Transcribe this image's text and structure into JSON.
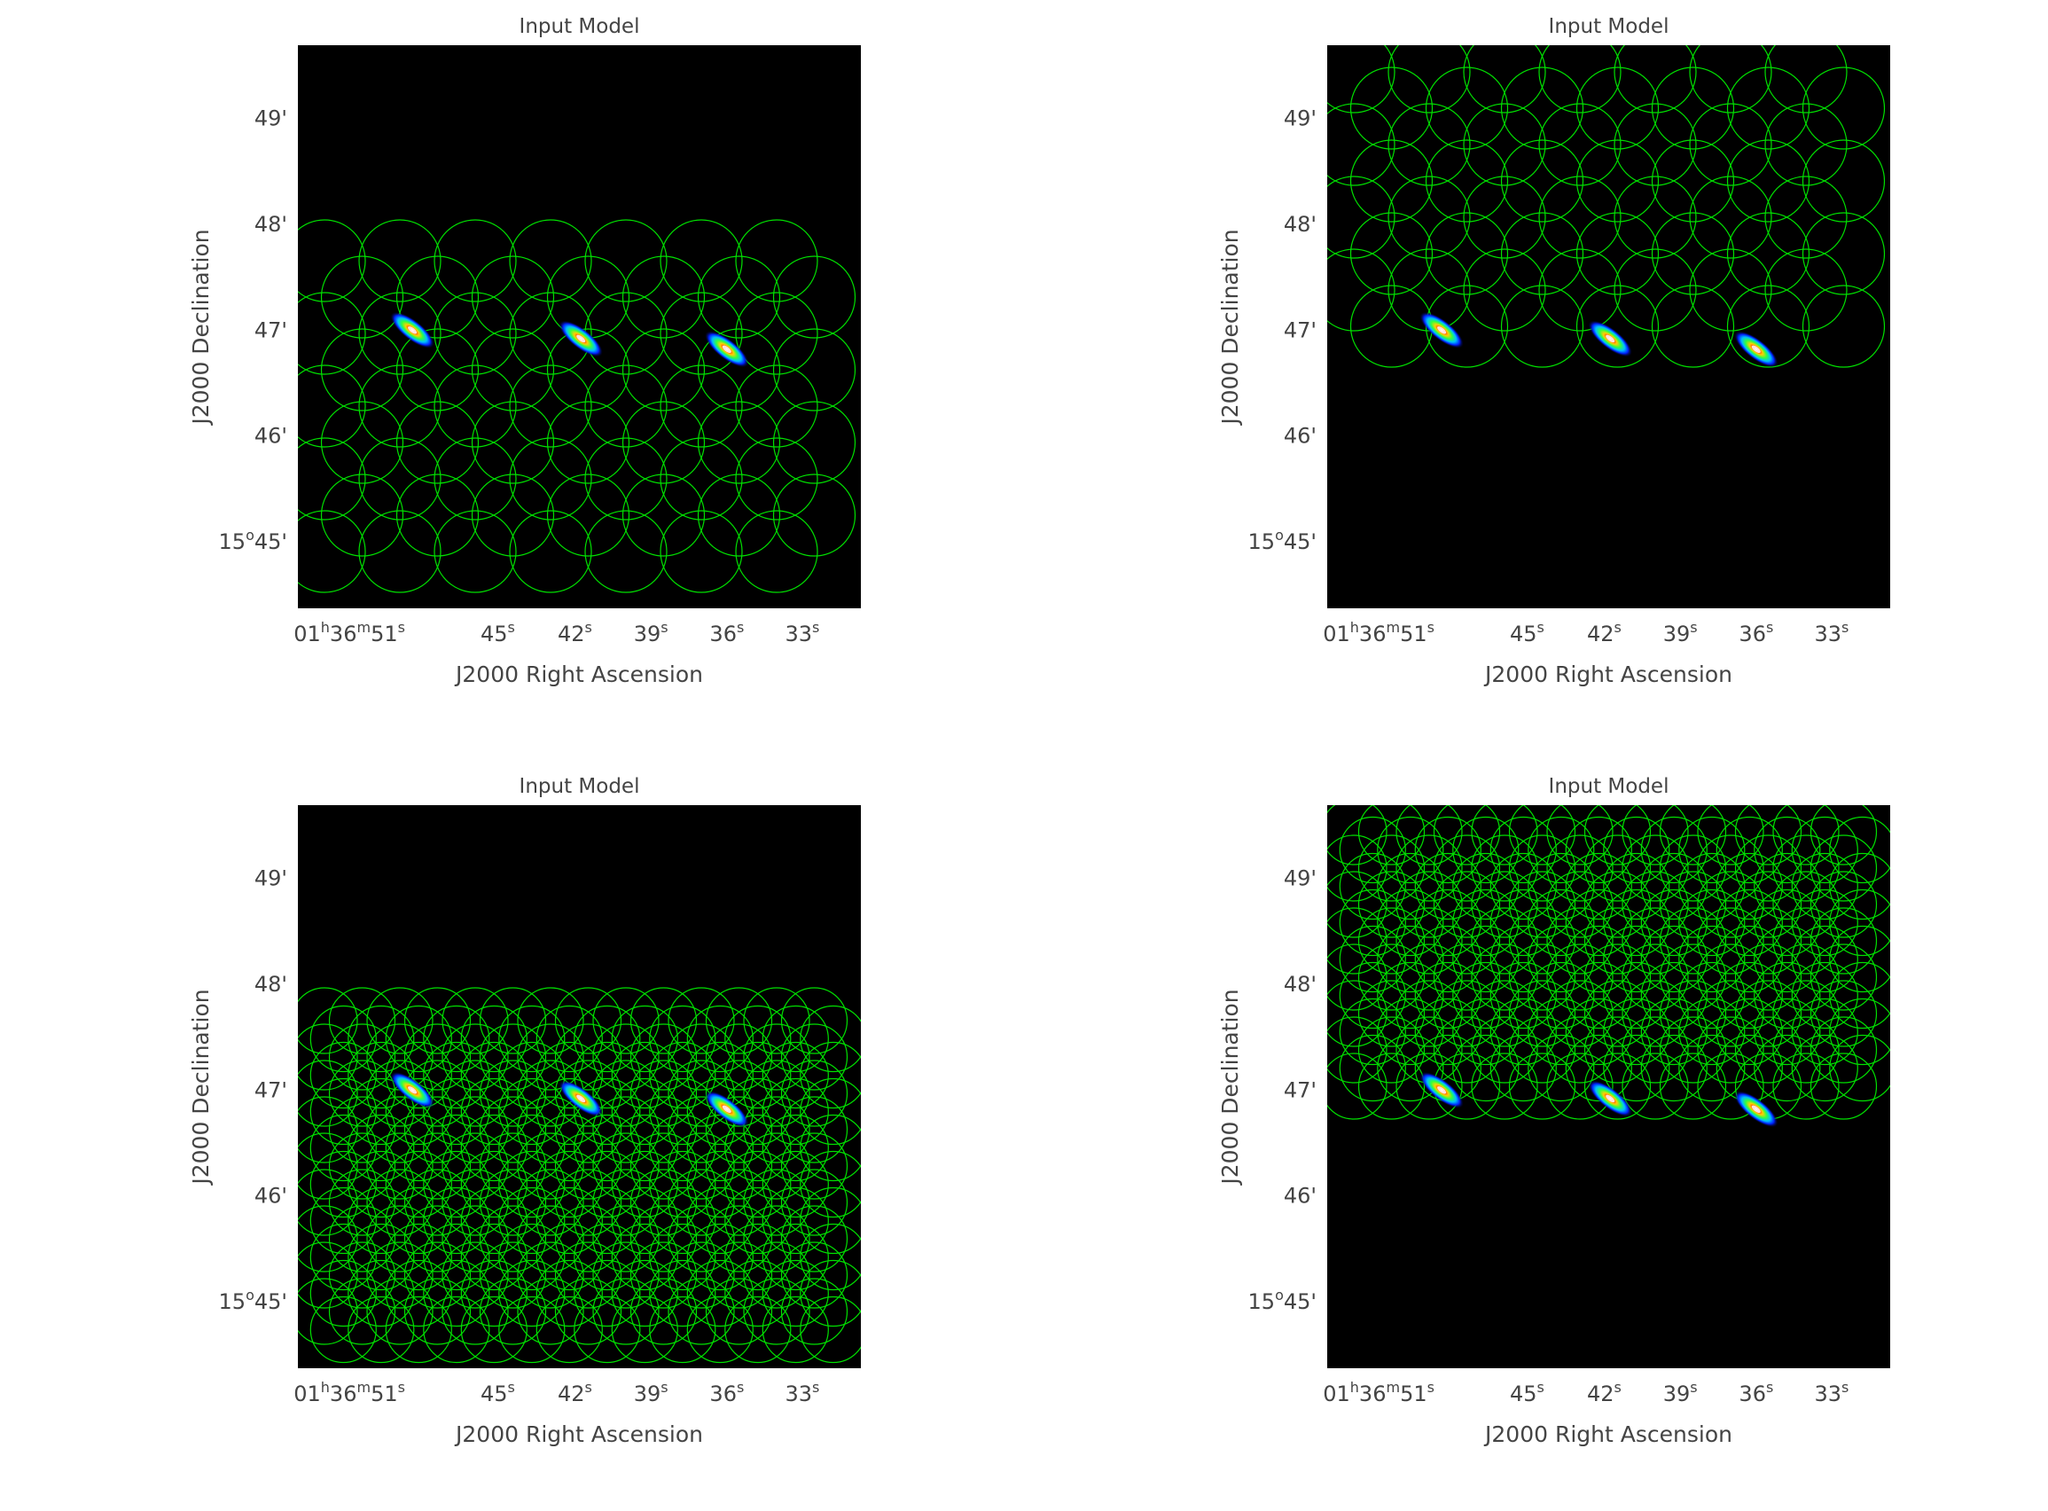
{
  "figure": {
    "background": "#ffffff",
    "image_background": "#000000",
    "text_color": "#444444",
    "circle_color": "#00e000"
  },
  "tick_labels": {
    "y": [
      {
        "text": "49'",
        "sup": ""
      },
      {
        "text": "48'",
        "sup": ""
      },
      {
        "text": "47'",
        "sup": ""
      },
      {
        "text": "46'",
        "sup": ""
      },
      {
        "text": "15",
        "sup": "o",
        "after": "45'"
      }
    ],
    "x": [
      {
        "parts": [
          [
            "01",
            ""
          ],
          [
            "h",
            "sup"
          ],
          [
            "36",
            ""
          ],
          [
            "m",
            "sup"
          ],
          [
            "51",
            ""
          ],
          [
            "s",
            "sup"
          ]
        ]
      },
      {
        "parts": [
          [
            "45",
            ""
          ],
          [
            "s",
            "sup"
          ]
        ]
      },
      {
        "parts": [
          [
            "42",
            ""
          ],
          [
            "s",
            "sup"
          ]
        ]
      },
      {
        "parts": [
          [
            "39",
            ""
          ],
          [
            "s",
            "sup"
          ]
        ]
      },
      {
        "parts": [
          [
            "36",
            ""
          ],
          [
            "s",
            "sup"
          ]
        ]
      },
      {
        "parts": [
          [
            "33",
            ""
          ],
          [
            "s",
            "sup"
          ]
        ]
      }
    ]
  },
  "panels": [
    {
      "id": "panel-top-left",
      "title": "Input Model",
      "xlabel": "J2000 Right Ascension",
      "ylabel": "J2000 Declination",
      "mosaic": {
        "region": "lower",
        "spacing": "coarse"
      },
      "sources": [
        {
          "ra_sec": 48.5,
          "dec_arcmin": 47.0
        },
        {
          "ra_sec": 41.8,
          "dec_arcmin": 46.92
        },
        {
          "ra_sec": 36.0,
          "dec_arcmin": 46.82
        }
      ]
    },
    {
      "id": "panel-top-right",
      "title": "Input Model",
      "xlabel": "J2000 Right Ascension",
      "ylabel": "J2000 Declination",
      "mosaic": {
        "region": "upper",
        "spacing": "coarse"
      },
      "sources": [
        {
          "ra_sec": 48.5,
          "dec_arcmin": 47.0
        },
        {
          "ra_sec": 41.8,
          "dec_arcmin": 46.92
        },
        {
          "ra_sec": 36.0,
          "dec_arcmin": 46.82
        }
      ]
    },
    {
      "id": "panel-bottom-left",
      "title": "Input Model",
      "xlabel": "J2000 Right Ascension",
      "ylabel": "J2000 Declination",
      "mosaic": {
        "region": "lower",
        "spacing": "fine"
      },
      "sources": [
        {
          "ra_sec": 48.5,
          "dec_arcmin": 47.0
        },
        {
          "ra_sec": 41.8,
          "dec_arcmin": 46.92
        },
        {
          "ra_sec": 36.0,
          "dec_arcmin": 46.82
        }
      ]
    },
    {
      "id": "panel-bottom-right",
      "title": "Input Model",
      "xlabel": "J2000 Right Ascension",
      "ylabel": "J2000 Declination",
      "mosaic": {
        "region": "upper",
        "spacing": "fine"
      },
      "sources": [
        {
          "ra_sec": 48.5,
          "dec_arcmin": 47.0
        },
        {
          "ra_sec": 41.8,
          "dec_arcmin": 46.92
        },
        {
          "ra_sec": 36.0,
          "dec_arcmin": 46.82
        }
      ]
    }
  ]
}
